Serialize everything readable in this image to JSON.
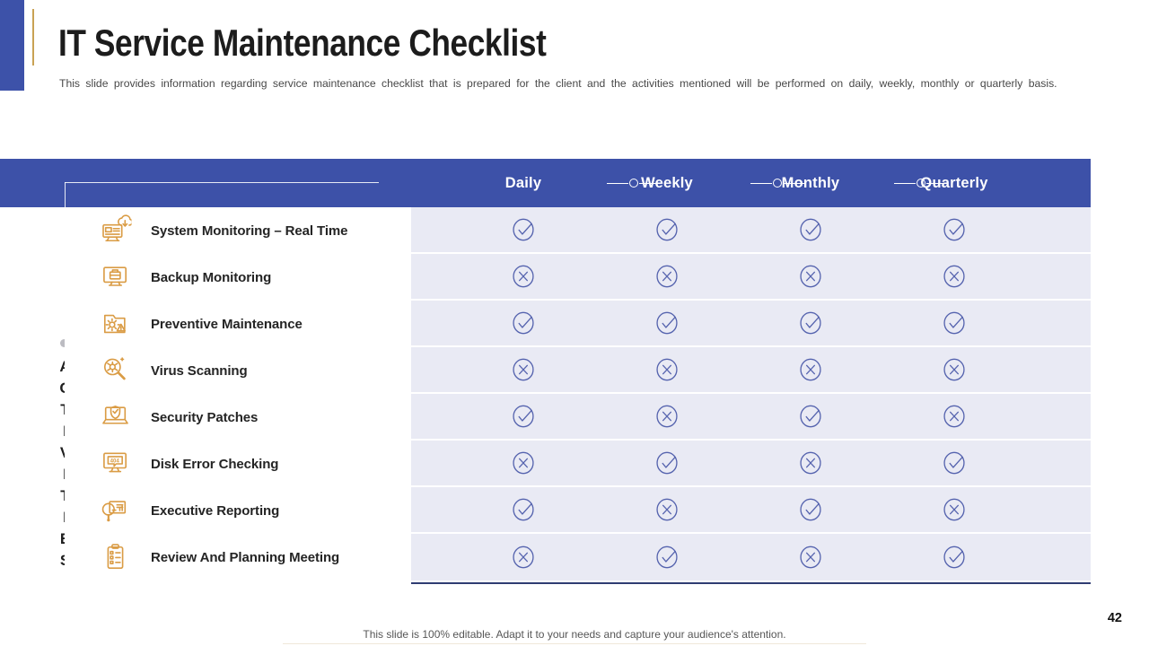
{
  "slide": {
    "title": "IT Service Maintenance Checklist",
    "subtitle": "This slide provides information regarding service maintenance checklist that is prepared for the client and the activities mentioned will be performed on daily, weekly, monthly or quarterly basis.",
    "side_label": "ACTIVITIES",
    "footer": "This slide is 100% editable. Adapt it to your needs and capture your audience's attention.",
    "page_number": "42"
  },
  "colors": {
    "header_blue": "#3D51A8",
    "corner_blue": "#3D52A9",
    "cell_lavender": "#E9EAF4",
    "mark_blue": "#5563AE",
    "icon_orange": "#DA9C45",
    "accent_gold": "#C9A254",
    "table_bottom_navy": "#2F3C72"
  },
  "table": {
    "columns": [
      "Daily",
      "Weekly",
      "Monthly",
      "Quarterly"
    ],
    "rows": [
      {
        "label": "System Monitoring – Real Time",
        "icon": "system-monitoring-icon",
        "values": [
          "check",
          "check",
          "check",
          "check"
        ]
      },
      {
        "label": "Backup Monitoring",
        "icon": "backup-monitoring-icon",
        "values": [
          "cross",
          "cross",
          "cross",
          "cross"
        ]
      },
      {
        "label": "Preventive Maintenance",
        "icon": "preventive-maintenance-icon",
        "values": [
          "check",
          "check",
          "check",
          "check"
        ]
      },
      {
        "label": "Virus Scanning",
        "icon": "virus-scanning-icon",
        "values": [
          "cross",
          "cross",
          "cross",
          "cross"
        ]
      },
      {
        "label": "Security Patches",
        "icon": "security-patches-icon",
        "values": [
          "check",
          "cross",
          "check",
          "cross"
        ]
      },
      {
        "label": "Disk Error Checking",
        "icon": "disk-error-checking-icon",
        "values": [
          "cross",
          "check",
          "cross",
          "check"
        ]
      },
      {
        "label": "Executive Reporting",
        "icon": "executive-reporting-icon",
        "values": [
          "check",
          "cross",
          "check",
          "cross"
        ]
      },
      {
        "label": "Review And Planning Meeting",
        "icon": "review-planning-meeting-icon",
        "values": [
          "cross",
          "check",
          "cross",
          "check"
        ]
      }
    ]
  }
}
